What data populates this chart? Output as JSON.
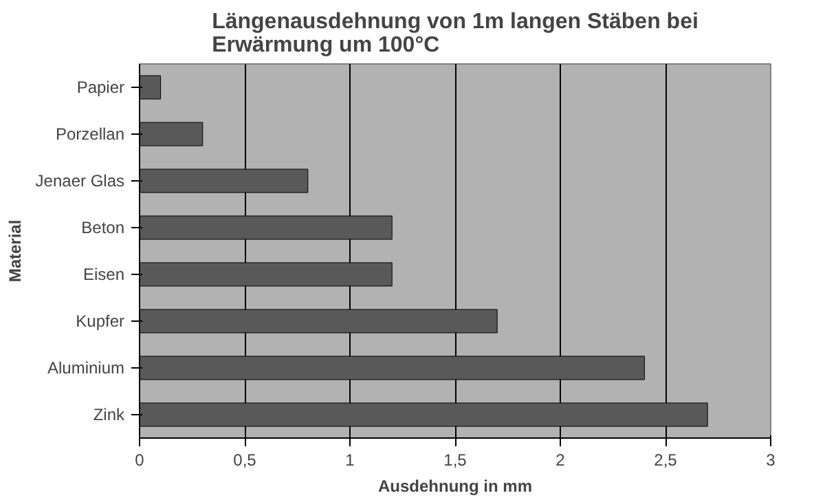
{
  "chart_data": {
    "type": "bar",
    "orientation": "horizontal",
    "title": "Längenausdehnung von 1m langen Stäben bei Erwärmung um 100°C",
    "xlabel": "Ausdehnung in mm",
    "ylabel": "Material",
    "categories": [
      "Papier",
      "Porzellan",
      "Jenaer Glas",
      "Beton",
      "Eisen",
      "Kupfer",
      "Aluminium",
      "Zink"
    ],
    "values": [
      0.1,
      0.3,
      0.8,
      1.2,
      1.2,
      1.7,
      2.4,
      2.7
    ],
    "color": "#595959",
    "xlim": [
      0,
      3
    ],
    "xticks": [
      0,
      {
        "value": 0.5,
        "label": "0,5"
      },
      1,
      {
        "value": 1.5,
        "label": "1,5"
      },
      2,
      {
        "value": 2.5,
        "label": "2,5"
      },
      3
    ],
    "grid": "x"
  }
}
